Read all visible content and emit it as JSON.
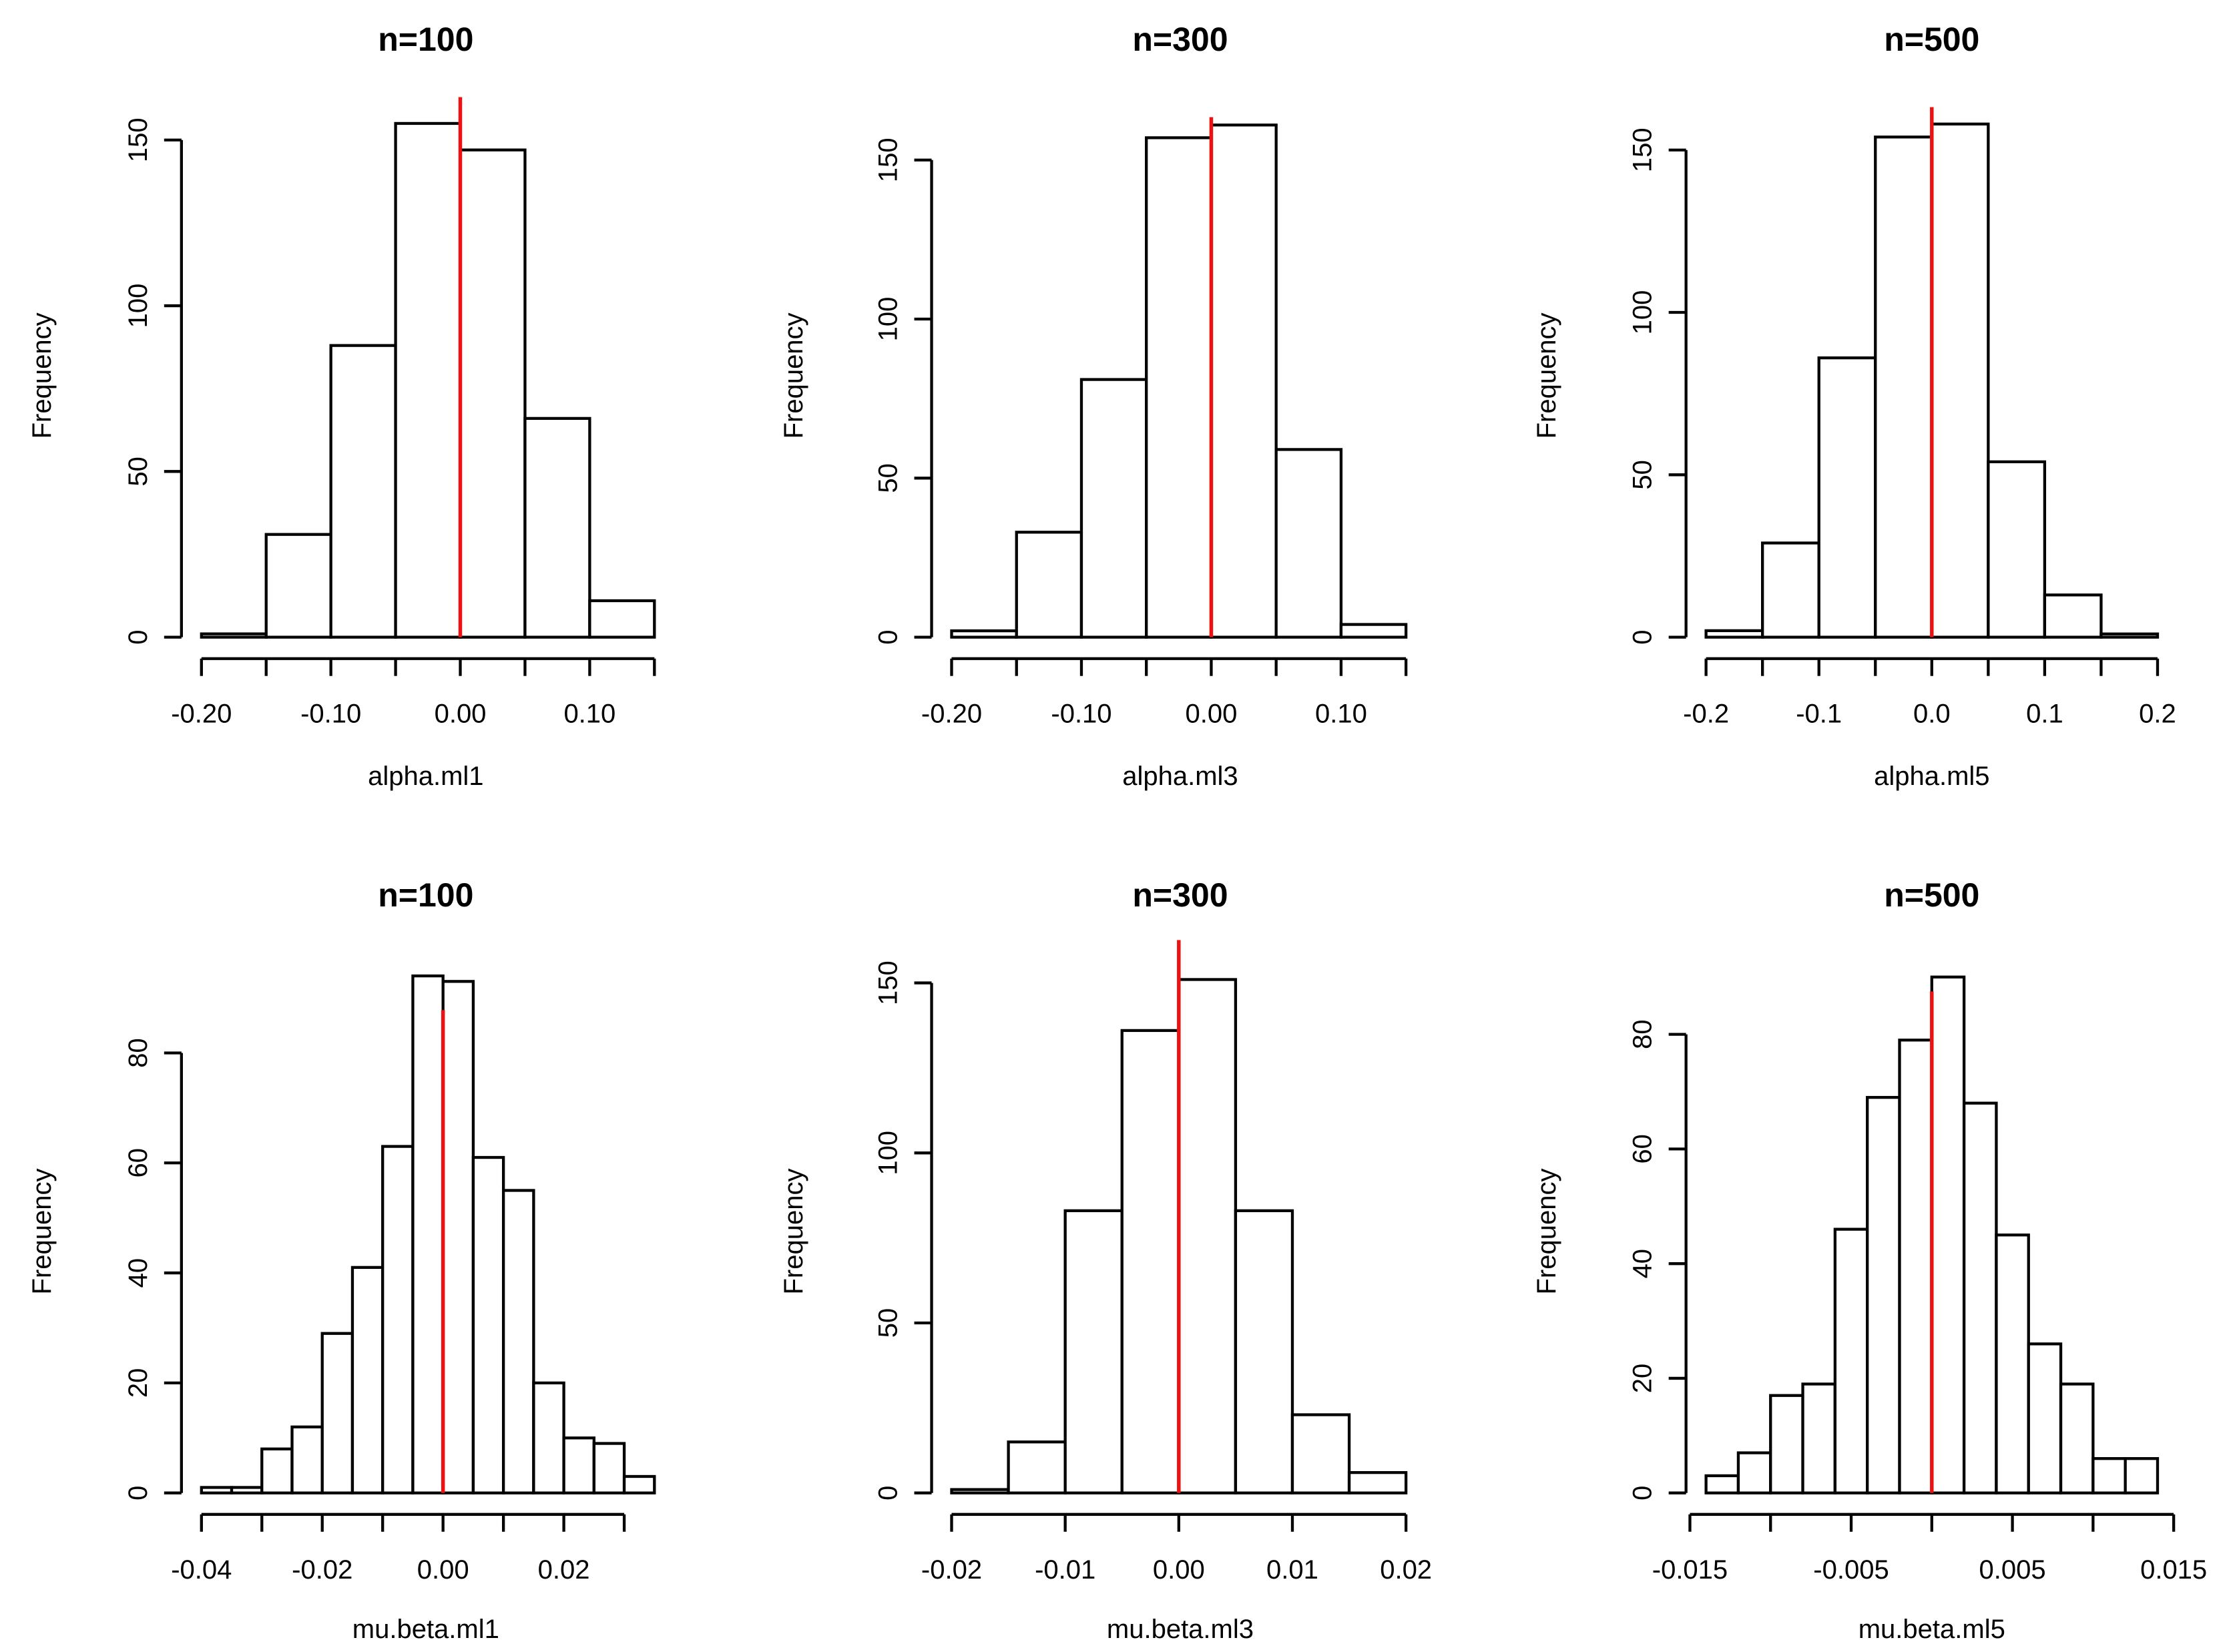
{
  "figure": {
    "layout": "2x3 grid of histograms",
    "background": "#ffffff",
    "ref_line_color": "#ee1111",
    "bar_fill": "#ffffff",
    "bar_stroke": "#000000"
  },
  "chart_data": [
    {
      "type": "bar",
      "title": "n=100",
      "xlabel": "alpha.ml1",
      "ylabel": "Frequency",
      "bin_edges": [
        -0.2,
        -0.15,
        -0.1,
        -0.05,
        0.0,
        0.05,
        0.1,
        0.15
      ],
      "values": [
        1,
        31,
        88,
        155,
        147,
        66,
        11
      ],
      "xlim": [
        -0.2,
        0.15
      ],
      "ylim": [
        0,
        150
      ],
      "xticks": [
        -0.2,
        -0.15,
        -0.1,
        -0.05,
        0.0,
        0.05,
        0.1,
        0.15
      ],
      "xtick_labels": [
        "-0.20",
        "",
        "-0.10",
        "",
        "0.00",
        "",
        "0.10",
        ""
      ],
      "yticks": [
        0,
        50,
        100,
        150
      ],
      "ytick_labels": [
        "0",
        "50",
        "100",
        "150"
      ],
      "ref_line": 0.0
    },
    {
      "type": "bar",
      "title": "n=300",
      "xlabel": "alpha.ml3",
      "ylabel": "Frequency",
      "bin_edges": [
        -0.2,
        -0.15,
        -0.1,
        -0.05,
        0.0,
        0.05,
        0.1,
        0.15
      ],
      "values": [
        2,
        33,
        81,
        157,
        161,
        59,
        4
      ],
      "xlim": [
        -0.2,
        0.15
      ],
      "ylim": [
        0,
        150
      ],
      "xticks": [
        -0.2,
        -0.15,
        -0.1,
        -0.05,
        0.0,
        0.05,
        0.1,
        0.15
      ],
      "xtick_labels": [
        "-0.20",
        "",
        "-0.10",
        "",
        "0.00",
        "",
        "0.10",
        ""
      ],
      "yticks": [
        0,
        50,
        100,
        150
      ],
      "ytick_labels": [
        "0",
        "50",
        "100",
        "150"
      ],
      "ref_line": 0.0
    },
    {
      "type": "bar",
      "title": "n=500",
      "xlabel": "alpha.ml5",
      "ylabel": "Frequency",
      "bin_edges": [
        -0.2,
        -0.15,
        -0.1,
        -0.05,
        0.0,
        0.05,
        0.1,
        0.15,
        0.2
      ],
      "values": [
        2,
        29,
        86,
        154,
        158,
        54,
        13,
        1
      ],
      "xlim": [
        -0.2,
        0.2
      ],
      "ylim": [
        0,
        150
      ],
      "xticks": [
        -0.2,
        -0.15,
        -0.1,
        -0.05,
        0.0,
        0.05,
        0.1,
        0.15,
        0.2
      ],
      "xtick_labels": [
        "-0.2",
        "",
        "-0.1",
        "",
        "0.0",
        "",
        "0.1",
        "",
        "0.2"
      ],
      "yticks": [
        0,
        50,
        100,
        150
      ],
      "ytick_labels": [
        "0",
        "50",
        "100",
        "150"
      ],
      "ref_line": 0.0
    },
    {
      "type": "bar",
      "title": "n=100",
      "xlabel": "mu.beta.ml1",
      "ylabel": "Frequency",
      "bin_edges": [
        -0.04,
        -0.035,
        -0.03,
        -0.025,
        -0.02,
        -0.015,
        -0.01,
        -0.005,
        0.0,
        0.005,
        0.01,
        0.015,
        0.02,
        0.025,
        0.03,
        0.035
      ],
      "values": [
        1,
        1,
        8,
        12,
        29,
        41,
        63,
        94,
        93,
        61,
        55,
        20,
        10,
        9,
        3
      ],
      "xlim": [
        -0.04,
        0.035
      ],
      "ylim": [
        0,
        80
      ],
      "xticks": [
        -0.04,
        -0.03,
        -0.02,
        -0.01,
        0.0,
        0.01,
        0.02,
        0.03
      ],
      "xtick_labels": [
        "-0.04",
        "",
        "-0.02",
        "",
        "0.00",
        "",
        "0.02",
        ""
      ],
      "yticks": [
        0,
        20,
        40,
        60,
        80
      ],
      "ytick_labels": [
        "0",
        "20",
        "40",
        "60",
        "80"
      ],
      "ref_line": 0.0
    },
    {
      "type": "bar",
      "title": "n=300",
      "xlabel": "mu.beta.ml3",
      "ylabel": "Frequency",
      "bin_edges": [
        -0.02,
        -0.015,
        -0.01,
        -0.005,
        0.0,
        0.005,
        0.01,
        0.015,
        0.02
      ],
      "values": [
        1,
        15,
        83,
        136,
        151,
        83,
        23,
        6
      ],
      "xlim": [
        -0.02,
        0.02
      ],
      "ylim": [
        0,
        150
      ],
      "xticks": [
        -0.02,
        -0.01,
        0.0,
        0.01,
        0.02
      ],
      "xtick_labels": [
        "-0.02",
        "-0.01",
        "0.00",
        "0.01",
        "0.02"
      ],
      "yticks": [
        0,
        50,
        100,
        150
      ],
      "ytick_labels": [
        "0",
        "50",
        "100",
        "150"
      ],
      "ref_line": 0.0
    },
    {
      "type": "bar",
      "title": "n=500",
      "xlabel": "mu.beta.ml5",
      "ylabel": "Frequency",
      "bin_edges": [
        -0.014,
        -0.012,
        -0.01,
        -0.008,
        -0.006,
        -0.004,
        -0.002,
        0.0,
        0.002,
        0.004,
        0.006,
        0.008,
        0.01,
        0.012,
        0.014
      ],
      "values": [
        3,
        7,
        17,
        19,
        46,
        69,
        79,
        90,
        68,
        45,
        26,
        19,
        6,
        6
      ],
      "xlim": [
        -0.014,
        0.014
      ],
      "ylim": [
        0,
        80
      ],
      "xticks": [
        -0.015,
        -0.01,
        -0.005,
        0.0,
        0.005,
        0.01,
        0.015
      ],
      "xtick_labels": [
        "-0.015",
        "",
        "-0.005",
        "",
        "0.005",
        "",
        "0.015"
      ],
      "yticks": [
        0,
        20,
        40,
        60,
        80
      ],
      "ytick_labels": [
        "0",
        "20",
        "40",
        "60",
        "80"
      ],
      "ref_line": 0.0
    }
  ]
}
